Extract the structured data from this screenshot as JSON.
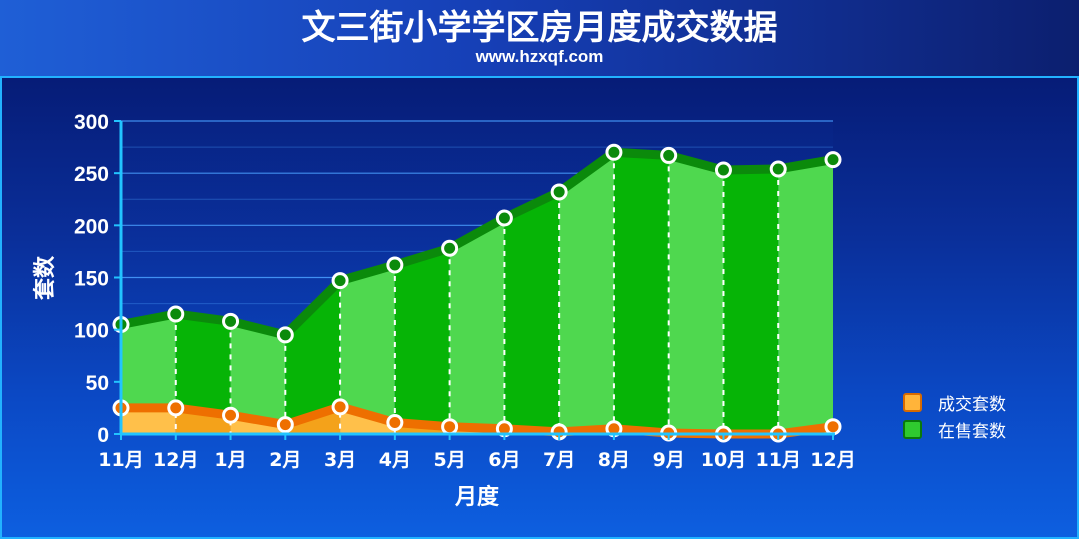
{
  "header": {
    "title": "文三街小学学区房月度成交数据",
    "subtitle": "www.hzxqf.com"
  },
  "colors": {
    "sold_line": "#ee6f00",
    "sold_fill": "#f4a21a",
    "listed_line": "#0b8a0b",
    "listed_fill_dark": "#06b406",
    "listed_fill_light": "#4fd84f",
    "grid": "#4aa0ff"
  },
  "chart_data": {
    "type": "area",
    "title": "文三街小学学区房月度成交数据",
    "xlabel": "月度",
    "ylabel": "套数",
    "ylim": [
      0,
      300
    ],
    "yticks": [
      0,
      50,
      100,
      150,
      200,
      250,
      300
    ],
    "grid": true,
    "legend_position": "right",
    "categories": [
      "11月",
      "12月",
      "1月",
      "2月",
      "3月",
      "4月",
      "5月",
      "6月",
      "7月",
      "8月",
      "9月",
      "10月",
      "11月",
      "12月"
    ],
    "series": [
      {
        "name": "成交套数",
        "color": "#ee6f00",
        "values": [
          25,
          25,
          18,
          9,
          26,
          11,
          7,
          5,
          2,
          5,
          1,
          0,
          0,
          7
        ]
      },
      {
        "name": "在售套数",
        "color": "#0b8a0b",
        "values": [
          105,
          115,
          108,
          95,
          147,
          162,
          178,
          207,
          232,
          270,
          267,
          253,
          254,
          263
        ]
      }
    ]
  }
}
